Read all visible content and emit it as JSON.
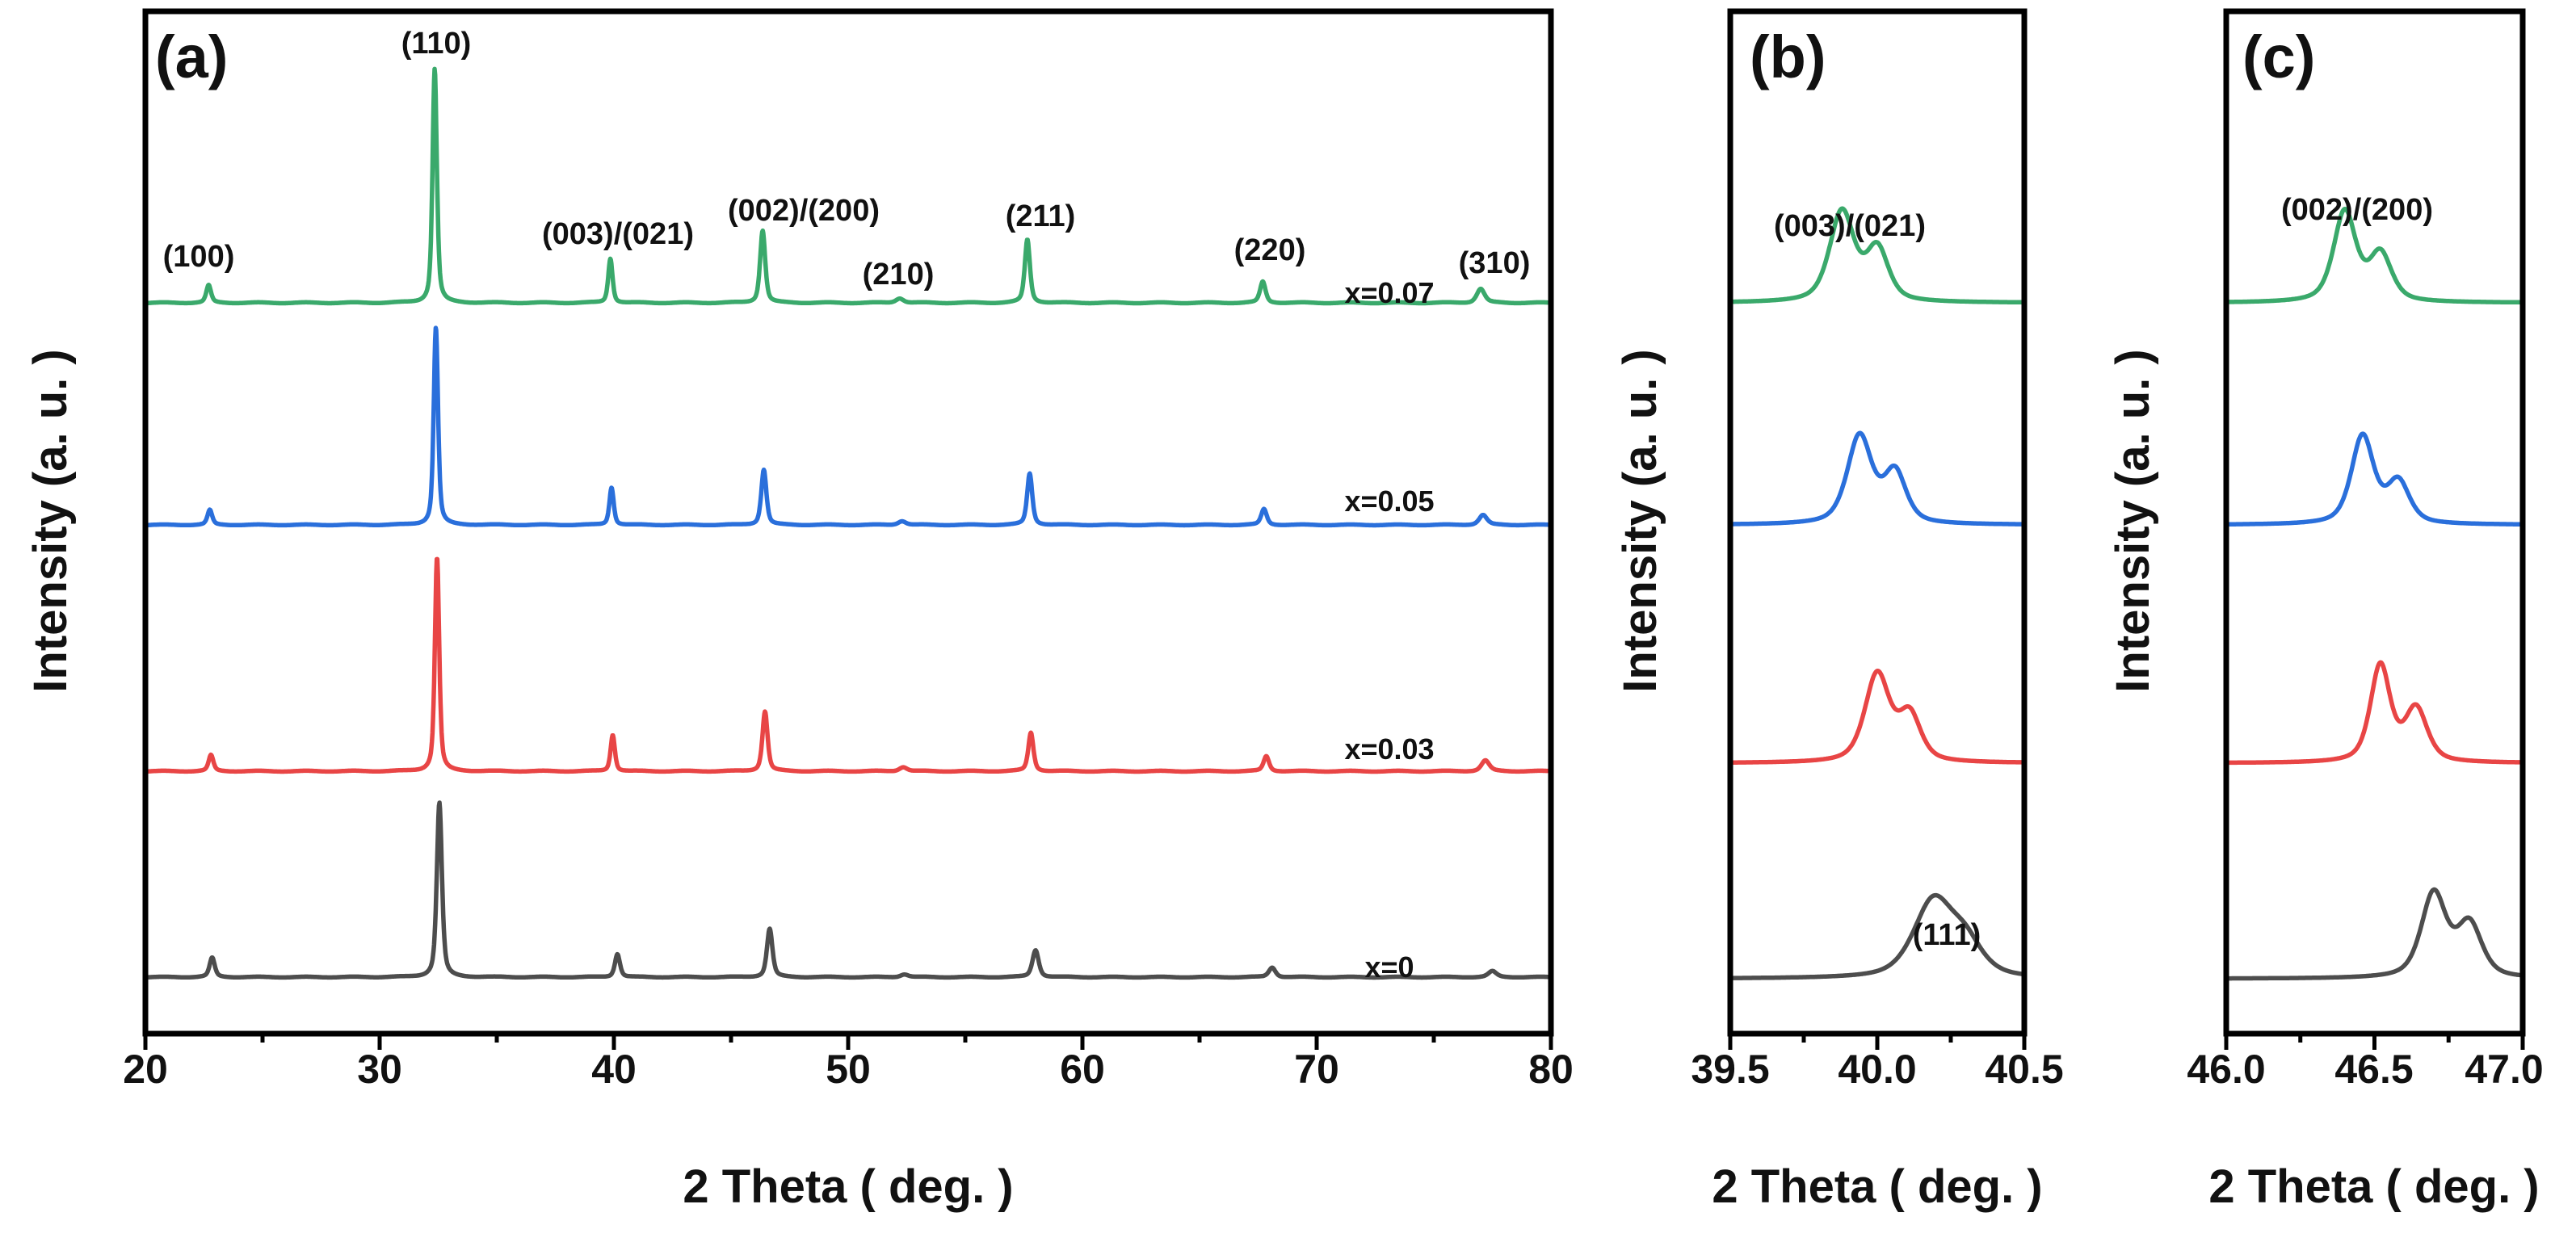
{
  "chart_data": [
    {
      "id": "panel-a",
      "type": "line",
      "panel_label": "(a)",
      "title": "",
      "xlabel": "2 Theta ( deg. )",
      "ylabel": "Intensity (a. u. )",
      "xlim": [
        20,
        80
      ],
      "xticks": [
        "20",
        "30",
        "40",
        "50",
        "60",
        "70",
        "80"
      ],
      "yticks": [],
      "grid": false,
      "series": [
        {
          "name": "x=0.07",
          "color": "#3aa96b",
          "offset": 0.21,
          "baseline_slope": 0.004,
          "peaks": [
            [
              22.7,
              0.075,
              0.12
            ],
            [
              32.35,
              1.0,
              0.11
            ],
            [
              39.85,
              0.19,
              0.11
            ],
            [
              46.35,
              0.31,
              0.13
            ],
            [
              52.2,
              0.02,
              0.2
            ],
            [
              57.65,
              0.27,
              0.13
            ],
            [
              67.7,
              0.09,
              0.14
            ],
            [
              77.0,
              0.06,
              0.2
            ]
          ]
        },
        {
          "name": "x=0.05",
          "color": "#2a6fdb",
          "offset": 0.2,
          "baseline_slope": 0.004,
          "peaks": [
            [
              22.75,
              0.075,
              0.12
            ],
            [
              32.4,
              1.0,
              0.11
            ],
            [
              39.9,
              0.19,
              0.11
            ],
            [
              46.4,
              0.28,
              0.13
            ],
            [
              52.3,
              0.02,
              0.2
            ],
            [
              57.75,
              0.26,
              0.13
            ],
            [
              67.75,
              0.08,
              0.14
            ],
            [
              77.1,
              0.05,
              0.2
            ]
          ]
        },
        {
          "name": "x=0.03",
          "color": "#e84545",
          "offset": 0.19,
          "baseline_slope": 0.004,
          "peaks": [
            [
              22.8,
              0.075,
              0.12
            ],
            [
              32.45,
              1.0,
              0.11
            ],
            [
              39.95,
              0.17,
              0.11
            ],
            [
              46.45,
              0.28,
              0.13
            ],
            [
              52.35,
              0.02,
              0.2
            ],
            [
              57.8,
              0.18,
              0.13
            ],
            [
              67.85,
              0.07,
              0.14
            ],
            [
              77.2,
              0.05,
              0.2
            ]
          ]
        },
        {
          "name": "x=0",
          "color": "#4d4d4d",
          "offset": 0.18,
          "baseline_slope": 0.004,
          "peaks": [
            [
              22.85,
              0.1,
              0.13
            ],
            [
              32.55,
              0.9,
              0.13
            ],
            [
              40.15,
              0.12,
              0.13
            ],
            [
              46.65,
              0.25,
              0.14
            ],
            [
              52.4,
              0.015,
              0.2
            ],
            [
              58.0,
              0.14,
              0.16
            ],
            [
              68.1,
              0.05,
              0.17
            ],
            [
              77.5,
              0.03,
              0.2
            ]
          ]
        }
      ],
      "annotations": [
        "(100)",
        "(110)",
        "(003)/(021)",
        "(002)/(200)",
        "(210)",
        "(211)",
        "(220)",
        "(310)"
      ]
    },
    {
      "id": "panel-b",
      "type": "line",
      "panel_label": "(b)",
      "title": "",
      "xlabel": "2 Theta ( deg. )",
      "ylabel": "Intensity (a. u. )",
      "xlim": [
        39.5,
        40.5
      ],
      "xticks": [
        "39.5",
        "40.0",
        "40.5"
      ],
      "yticks": [],
      "grid": false,
      "series": [
        {
          "name": "x=0.07",
          "color": "#3aa96b",
          "offset": 0.07,
          "peaks": [
            [
              39.88,
              0.95,
              0.05
            ],
            [
              40.0,
              0.55,
              0.045
            ]
          ]
        },
        {
          "name": "x=0.05",
          "color": "#2a6fdb",
          "offset": 0.07,
          "peaks": [
            [
              39.94,
              0.95,
              0.05
            ],
            [
              40.06,
              0.55,
              0.045
            ]
          ]
        },
        {
          "name": "x=0.03",
          "color": "#e84545",
          "offset": 0.07,
          "peaks": [
            [
              40.0,
              0.95,
              0.05
            ],
            [
              40.11,
              0.5,
              0.045
            ]
          ]
        },
        {
          "name": "x=0",
          "color": "#4d4d4d",
          "offset": 0.07,
          "peaks": [
            [
              40.19,
              0.85,
              0.08
            ],
            [
              40.3,
              0.35,
              0.07
            ]
          ]
        }
      ],
      "annotations": [
        "(003)/(021)",
        "(111)"
      ]
    },
    {
      "id": "panel-c",
      "type": "line",
      "panel_label": "(c)",
      "title": "",
      "xlabel": "2 Theta ( deg. )",
      "ylabel": "Intensity (a. u. )",
      "xlim": [
        46.0,
        47.0
      ],
      "xticks": [
        "46.0",
        "46.5",
        "47.0"
      ],
      "yticks": [],
      "grid": false,
      "series": [
        {
          "name": "x=0.07",
          "color": "#3aa96b",
          "offset": 0.07,
          "peaks": [
            [
              46.4,
              0.95,
              0.045
            ],
            [
              46.52,
              0.5,
              0.045
            ]
          ]
        },
        {
          "name": "x=0.05",
          "color": "#2a6fdb",
          "offset": 0.07,
          "peaks": [
            [
              46.46,
              0.95,
              0.045
            ],
            [
              46.58,
              0.45,
              0.045
            ]
          ]
        },
        {
          "name": "x=0.03",
          "color": "#e84545",
          "offset": 0.07,
          "peaks": [
            [
              46.52,
              1.0,
              0.04
            ],
            [
              46.64,
              0.55,
              0.045
            ]
          ]
        },
        {
          "name": "x=0",
          "color": "#4d4d4d",
          "offset": 0.07,
          "peaks": [
            [
              46.7,
              0.95,
              0.05
            ],
            [
              46.82,
              0.6,
              0.05
            ]
          ]
        }
      ],
      "annotations": [
        "(002)/(200)"
      ]
    }
  ]
}
